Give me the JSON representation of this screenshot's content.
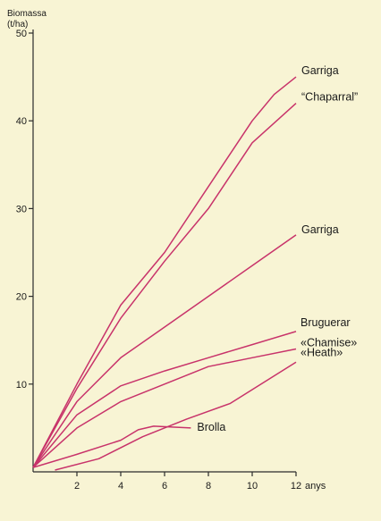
{
  "chart_data": {
    "type": "line",
    "ylabel_line1": "Biomassa",
    "ylabel_line2": "(t/ha)",
    "xunit": "anys",
    "xlim": [
      0,
      12
    ],
    "ylim": [
      0,
      50
    ],
    "xticks": [
      2,
      4,
      6,
      8,
      10,
      12
    ],
    "yticks": [
      10,
      20,
      30,
      40,
      50
    ],
    "grid": false,
    "line_color": "#c8336a",
    "series": [
      {
        "name": "Garriga",
        "points": [
          [
            0,
            0.5
          ],
          [
            2,
            10
          ],
          [
            4,
            19
          ],
          [
            6,
            25
          ],
          [
            8,
            32.5
          ],
          [
            10,
            40
          ],
          [
            11,
            43
          ],
          [
            12,
            45
          ]
        ]
      },
      {
        "name": "“Chaparral”",
        "points": [
          [
            0,
            0.5
          ],
          [
            2,
            9.5
          ],
          [
            4,
            17.5
          ],
          [
            6,
            24
          ],
          [
            8,
            30
          ],
          [
            10,
            37.5
          ],
          [
            12,
            42
          ]
        ]
      },
      {
        "name": "Garriga",
        "points": [
          [
            0,
            0.5
          ],
          [
            2,
            8
          ],
          [
            4,
            13
          ],
          [
            6,
            16.5
          ],
          [
            8,
            20
          ],
          [
            10,
            23.5
          ],
          [
            12,
            27
          ]
        ]
      },
      {
        "name": "Bruguerar",
        "points": [
          [
            0,
            0.5
          ],
          [
            2,
            6.5
          ],
          [
            4,
            9.8
          ],
          [
            6,
            11.5
          ],
          [
            8,
            13
          ],
          [
            10,
            14.5
          ],
          [
            12,
            16
          ]
        ]
      },
      {
        "name": "«Chamise»",
        "points": [
          [
            0,
            0.5
          ],
          [
            2,
            5
          ],
          [
            4,
            8
          ],
          [
            6,
            10
          ],
          [
            8,
            12
          ],
          [
            10,
            13
          ],
          [
            12,
            14
          ]
        ]
      },
      {
        "name": "«Heath»",
        "points": [
          [
            1,
            0.2
          ],
          [
            3,
            1.5
          ],
          [
            5,
            4
          ],
          [
            7,
            6
          ],
          [
            9,
            7.8
          ],
          [
            12,
            12.5
          ]
        ]
      },
      {
        "name": "Brolla",
        "points": [
          [
            0,
            0.5
          ],
          [
            2,
            2
          ],
          [
            4,
            3.6
          ],
          [
            4.8,
            4.8
          ],
          [
            5.5,
            5.2
          ],
          [
            7.2,
            5
          ]
        ]
      }
    ]
  }
}
